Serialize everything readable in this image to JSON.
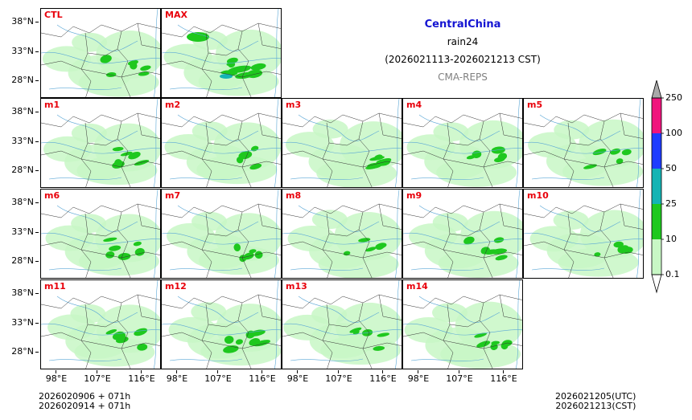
{
  "title": {
    "region": "CentralChina",
    "variable": "rain24",
    "period": "(2026021113-2026021213 CST)",
    "model": "CMA-REPS"
  },
  "axes": {
    "y_ticks": [
      "38°N",
      "33°N",
      "28°N"
    ],
    "x_ticks": [
      "98°E",
      "107°E",
      "116°E"
    ]
  },
  "panels": [
    {
      "label": "CTL",
      "intensity": 0.8,
      "seed": 1
    },
    {
      "label": "MAX",
      "intensity": 1.4,
      "seed": 2
    },
    {
      "label": "m1",
      "intensity": 0.8,
      "seed": 3
    },
    {
      "label": "m2",
      "intensity": 0.6,
      "seed": 4
    },
    {
      "label": "m3",
      "intensity": 0.8,
      "seed": 5
    },
    {
      "label": "m4",
      "intensity": 0.6,
      "seed": 6
    },
    {
      "label": "m5",
      "intensity": 0.6,
      "seed": 7
    },
    {
      "label": "m6",
      "intensity": 0.8,
      "seed": 8
    },
    {
      "label": "m7",
      "intensity": 0.4,
      "seed": 9
    },
    {
      "label": "m8",
      "intensity": 0.5,
      "seed": 10
    },
    {
      "label": "m9",
      "intensity": 0.9,
      "seed": 11
    },
    {
      "label": "m10",
      "intensity": 0.5,
      "seed": 12
    },
    {
      "label": "m11",
      "intensity": 0.8,
      "seed": 13
    },
    {
      "label": "m12",
      "intensity": 1.0,
      "seed": 14
    },
    {
      "label": "m13",
      "intensity": 0.5,
      "seed": 15
    },
    {
      "label": "m14",
      "intensity": 0.7,
      "seed": 16
    }
  ],
  "colorbar": {
    "levels": [
      "0.1",
      "10",
      "25",
      "50",
      "100",
      "250"
    ],
    "colors": [
      "#c8f7c5",
      "#1ec81e",
      "#14b4b4",
      "#1e3cff",
      "#f0147d",
      "#a9a9a9"
    ]
  },
  "footer": {
    "init_line1": "2026020906  +  071h",
    "init_line2": "2026020914  +  071h",
    "valid_utc": "2026021205(UTC)",
    "valid_cst": "2026021213(CST)"
  }
}
